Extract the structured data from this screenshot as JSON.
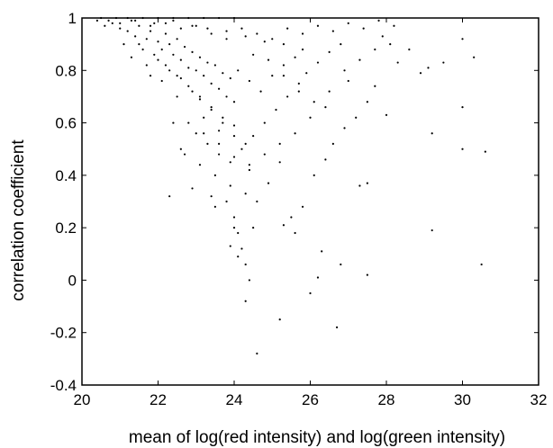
{
  "chart_data": {
    "type": "scatter",
    "title": "",
    "xlabel": "mean of log(red intensity) and log(green intensity)",
    "ylabel": "correlation coefficient",
    "xlim": [
      20,
      32
    ],
    "ylim": [
      -0.4,
      1
    ],
    "x_ticks": [
      20,
      22,
      24,
      26,
      28,
      30,
      32
    ],
    "x_tick_labels": [
      "20",
      "22",
      "24",
      "26",
      "28",
      "30",
      "32"
    ],
    "y_ticks": [
      -0.4,
      -0.2,
      0,
      0.2,
      0.4,
      0.6,
      0.8,
      1
    ],
    "y_tick_labels": [
      "-0.4",
      "-0.2",
      "0",
      "0.2",
      "0.4",
      "0.6",
      "0.8",
      "1"
    ],
    "grid": false,
    "marker_color": "#000000",
    "series": [
      {
        "values": [
          [
            20.4,
            0.99
          ],
          [
            20.6,
            0.97
          ],
          [
            20.8,
            0.98
          ],
          [
            21.0,
            0.96
          ],
          [
            21.2,
            0.95
          ],
          [
            21.4,
            0.93
          ],
          [
            21.5,
            0.97
          ],
          [
            21.7,
            0.92
          ],
          [
            21.8,
            0.95
          ],
          [
            22.0,
            0.91
          ],
          [
            22.1,
            0.88
          ],
          [
            22.2,
            0.94
          ],
          [
            22.3,
            0.9
          ],
          [
            22.4,
            0.86
          ],
          [
            22.5,
            0.92
          ],
          [
            22.6,
            0.84
          ],
          [
            22.7,
            0.89
          ],
          [
            22.8,
            0.81
          ],
          [
            22.9,
            0.87
          ],
          [
            23.0,
            0.8
          ],
          [
            23.1,
            0.85
          ],
          [
            23.2,
            0.78
          ],
          [
            23.3,
            0.83
          ],
          [
            23.4,
            0.75
          ],
          [
            23.5,
            0.82
          ],
          [
            23.6,
            0.73
          ],
          [
            23.7,
            0.79
          ],
          [
            23.8,
            0.7
          ],
          [
            23.9,
            0.77
          ],
          [
            24.0,
            0.68
          ],
          [
            21.3,
            0.99
          ],
          [
            21.9,
            0.98
          ],
          [
            22.4,
            0.99
          ],
          [
            22.9,
            0.97
          ],
          [
            23.3,
            0.96
          ],
          [
            23.8,
            0.95
          ],
          [
            24.3,
            0.93
          ],
          [
            24.8,
            0.91
          ],
          [
            25.3,
            0.9
          ],
          [
            25.8,
            0.88
          ],
          [
            21.1,
            0.9
          ],
          [
            21.6,
            0.88
          ],
          [
            22.0,
            0.84
          ],
          [
            22.3,
            0.8
          ],
          [
            22.6,
            0.77
          ],
          [
            22.9,
            0.72
          ],
          [
            23.1,
            0.69
          ],
          [
            23.4,
            0.66
          ],
          [
            23.7,
            0.62
          ],
          [
            24.0,
            0.59
          ],
          [
            23.0,
            0.56
          ],
          [
            23.3,
            0.52
          ],
          [
            23.6,
            0.48
          ],
          [
            23.9,
            0.45
          ],
          [
            24.2,
            0.5
          ],
          [
            24.5,
            0.55
          ],
          [
            24.8,
            0.6
          ],
          [
            25.1,
            0.65
          ],
          [
            25.4,
            0.7
          ],
          [
            25.7,
            0.75
          ],
          [
            24.1,
            0.8
          ],
          [
            24.4,
            0.76
          ],
          [
            24.7,
            0.72
          ],
          [
            25.0,
            0.78
          ],
          [
            25.3,
            0.82
          ],
          [
            25.6,
            0.85
          ],
          [
            25.9,
            0.79
          ],
          [
            26.2,
            0.83
          ],
          [
            26.5,
            0.87
          ],
          [
            26.8,
            0.9
          ],
          [
            22.7,
            0.48
          ],
          [
            23.1,
            0.44
          ],
          [
            23.5,
            0.4
          ],
          [
            23.9,
            0.36
          ],
          [
            24.3,
            0.33
          ],
          [
            24.6,
            0.3
          ],
          [
            23.5,
            0.28
          ],
          [
            24.0,
            0.24
          ],
          [
            24.1,
            0.18
          ],
          [
            24.2,
            0.12
          ],
          [
            24.3,
            0.06
          ],
          [
            24.4,
            0.0
          ],
          [
            24.3,
            -0.08
          ],
          [
            24.6,
            -0.28
          ],
          [
            25.2,
            -0.15
          ],
          [
            26.0,
            -0.05
          ],
          [
            26.7,
            -0.18
          ],
          [
            26.2,
            0.01
          ],
          [
            26.3,
            0.11
          ],
          [
            26.8,
            0.06
          ],
          [
            25.3,
            0.21
          ],
          [
            25.5,
            0.24
          ],
          [
            25.6,
            0.18
          ],
          [
            25.8,
            0.28
          ],
          [
            26.1,
            0.4
          ],
          [
            26.4,
            0.46
          ],
          [
            26.6,
            0.52
          ],
          [
            26.9,
            0.58
          ],
          [
            27.2,
            0.62
          ],
          [
            27.5,
            0.68
          ],
          [
            27.3,
            0.36
          ],
          [
            27.5,
            0.37
          ],
          [
            27.5,
            0.02
          ],
          [
            27.9,
            0.93
          ],
          [
            28.3,
            0.83
          ],
          [
            28.6,
            0.88
          ],
          [
            28.9,
            0.79
          ],
          [
            29.1,
            0.81
          ],
          [
            29.2,
            0.56
          ],
          [
            29.2,
            0.19
          ],
          [
            29.5,
            0.83
          ],
          [
            30.0,
            0.92
          ],
          [
            30.0,
            0.66
          ],
          [
            30.0,
            0.5
          ],
          [
            30.6,
            0.49
          ],
          [
            30.5,
            0.06
          ],
          [
            30.3,
            0.85
          ],
          [
            28.0,
            0.63
          ],
          [
            27.7,
            0.74
          ],
          [
            27.0,
            0.76
          ],
          [
            22.3,
            0.32
          ],
          [
            22.9,
            0.35
          ],
          [
            22.1,
            0.76
          ],
          [
            21.7,
            0.82
          ],
          [
            22.5,
            0.7
          ],
          [
            23.2,
            0.62
          ],
          [
            23.6,
            0.57
          ],
          [
            24.4,
            0.42
          ],
          [
            24.9,
            0.37
          ],
          [
            25.2,
            0.45
          ],
          [
            20.7,
            0.99
          ],
          [
            21.0,
            0.98
          ],
          [
            21.4,
            0.99
          ],
          [
            21.8,
            0.97
          ],
          [
            22.2,
            0.98
          ],
          [
            22.6,
            0.96
          ],
          [
            23.0,
            0.97
          ],
          [
            23.4,
            0.94
          ],
          [
            23.8,
            0.92
          ],
          [
            24.2,
            0.96
          ],
          [
            24.6,
            0.94
          ],
          [
            25.0,
            0.92
          ],
          [
            25.4,
            0.96
          ],
          [
            25.8,
            0.94
          ],
          [
            26.2,
            0.97
          ],
          [
            26.6,
            0.95
          ],
          [
            27.0,
            0.98
          ],
          [
            27.4,
            0.96
          ],
          [
            27.8,
            0.99
          ],
          [
            28.2,
            0.97
          ],
          [
            20.5,
            1.0
          ],
          [
            20.9,
            1.0
          ],
          [
            21.2,
            1.0
          ],
          [
            21.6,
            1.0
          ],
          [
            22.0,
            1.0
          ],
          [
            22.4,
            1.0
          ],
          [
            22.8,
            1.0
          ],
          [
            23.2,
            1.0
          ],
          [
            23.6,
            1.0
          ],
          [
            24.0,
            1.0
          ],
          [
            21.5,
            0.9
          ],
          [
            21.9,
            0.86
          ],
          [
            22.2,
            0.82
          ],
          [
            22.5,
            0.78
          ],
          [
            22.8,
            0.74
          ],
          [
            23.1,
            0.7
          ],
          [
            23.4,
            0.65
          ],
          [
            23.7,
            0.6
          ],
          [
            24.0,
            0.55
          ],
          [
            24.3,
            0.52
          ],
          [
            22.8,
            0.6
          ],
          [
            23.2,
            0.56
          ],
          [
            23.6,
            0.52
          ],
          [
            24.0,
            0.47
          ],
          [
            24.4,
            0.44
          ],
          [
            24.8,
            0.48
          ],
          [
            25.2,
            0.52
          ],
          [
            25.6,
            0.56
          ],
          [
            26.0,
            0.62
          ],
          [
            26.4,
            0.66
          ],
          [
            24.5,
            0.86
          ],
          [
            24.9,
            0.84
          ],
          [
            25.3,
            0.78
          ],
          [
            25.7,
            0.72
          ],
          [
            26.1,
            0.68
          ],
          [
            26.5,
            0.72
          ],
          [
            26.9,
            0.8
          ],
          [
            27.3,
            0.84
          ],
          [
            27.7,
            0.88
          ],
          [
            28.1,
            0.9
          ],
          [
            23.9,
            0.13
          ],
          [
            24.1,
            0.09
          ],
          [
            24.0,
            0.2
          ],
          [
            24.5,
            0.2
          ],
          [
            23.8,
            0.3
          ],
          [
            23.4,
            0.32
          ],
          [
            22.6,
            0.5
          ],
          [
            22.4,
            0.6
          ],
          [
            21.8,
            0.78
          ],
          [
            21.3,
            0.85
          ]
        ]
      }
    ]
  }
}
